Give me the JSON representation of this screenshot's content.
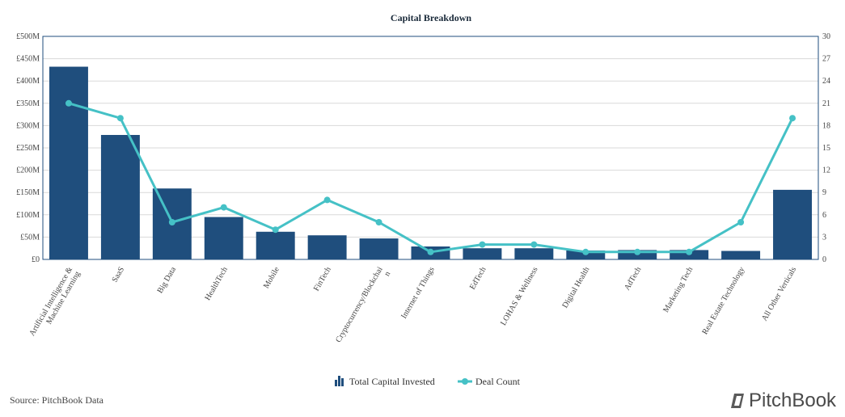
{
  "chart_data": {
    "type": "bar",
    "title": "Capital Breakdown",
    "categories": [
      "Artificial Intelligence & Machine Learning",
      "SaaS",
      "Big Data",
      "HealthTech",
      "Mobile",
      "FinTech",
      "Cryptocurrency/Blockchain",
      "Internet of Things",
      "EdTech",
      "LOHAS & Wellness",
      "Digital Health",
      "AdTech",
      "Marketing Tech",
      "Real Estate Technology",
      "All Other Verticals"
    ],
    "category_label_lines": [
      [
        "Artificial Intelligence &",
        "Machine Learning"
      ],
      [
        "SaaS"
      ],
      [
        "Big Data"
      ],
      [
        "HealthTech"
      ],
      [
        "Mobile"
      ],
      [
        "FinTech"
      ],
      [
        "Cryptocurrency/Blockchai",
        "n"
      ],
      [
        "Internet of Things"
      ],
      [
        "EdTech"
      ],
      [
        "LOHAS & Wellness"
      ],
      [
        "Digital Health"
      ],
      [
        "AdTech"
      ],
      [
        "Marketing Tech"
      ],
      [
        "Real Estate Technology"
      ],
      [
        "All Other Verticals"
      ]
    ],
    "series": [
      {
        "name": "Total Capital Invested",
        "type": "bar",
        "axis": "left",
        "color": "#1f4e7d",
        "values": [
          432,
          279,
          159,
          95,
          62,
          54,
          47,
          29,
          25,
          25,
          20,
          21,
          21,
          19,
          156
        ]
      },
      {
        "name": "Deal Count",
        "type": "line",
        "axis": "right",
        "color": "#45c1c6",
        "values": [
          21,
          19,
          5,
          7,
          4,
          8,
          5,
          1,
          2,
          2,
          1,
          1,
          1,
          5,
          19
        ]
      }
    ],
    "y_left": {
      "min": 0,
      "max": 500,
      "step": 50,
      "tick_labels": [
        "£0",
        "£50M",
        "£100M",
        "£150M",
        "£200M",
        "£250M",
        "£300M",
        "£350M",
        "£400M",
        "£450M",
        "£500M"
      ]
    },
    "y_right": {
      "min": 0,
      "max": 30,
      "step": 3,
      "tick_labels": [
        "0",
        "3",
        "6",
        "9",
        "12",
        "15",
        "18",
        "21",
        "24",
        "27",
        "30"
      ]
    },
    "grid": true,
    "legend_position": "bottom-center"
  },
  "footer": {
    "source": "Source: PitchBook Data",
    "brand": "PitchBook"
  }
}
